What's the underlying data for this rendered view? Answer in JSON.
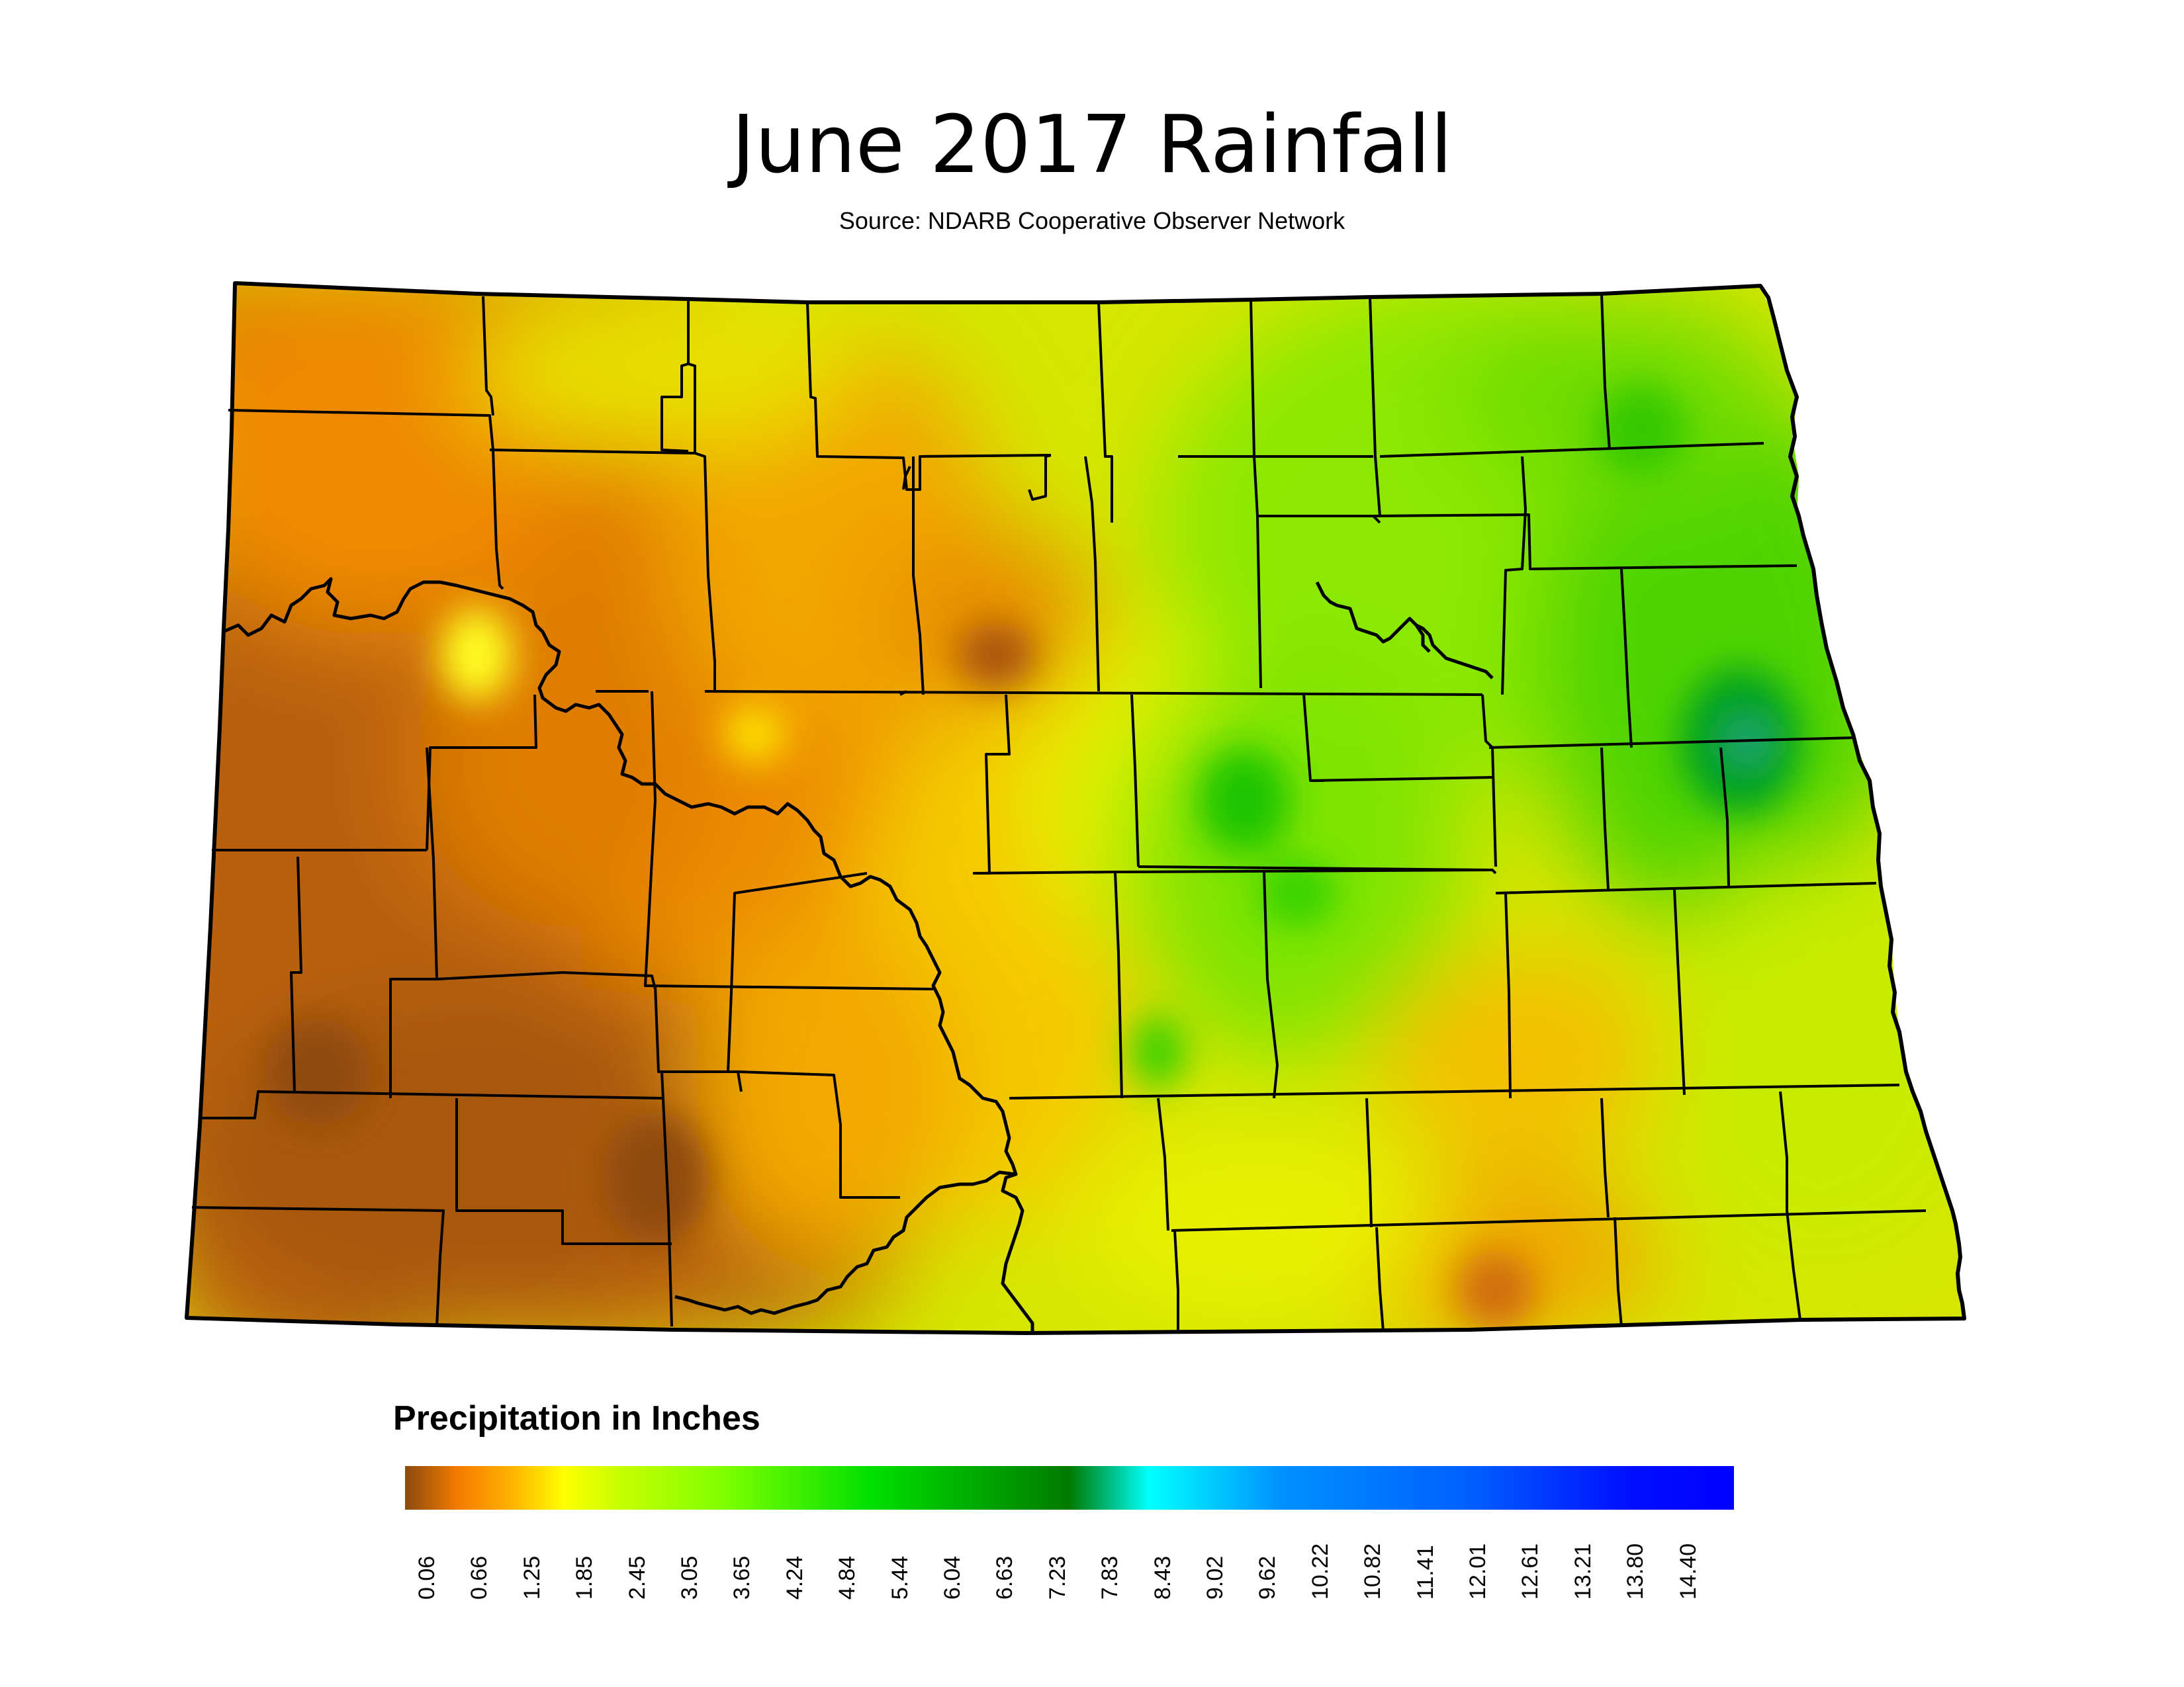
{
  "title": "June 2017 Rainfall",
  "subtitle": "Source: NDARB Cooperative Observer Network",
  "legend": {
    "title": "Precipitation in Inches",
    "ticks": [
      "0.06",
      "0.66",
      "1.25",
      "1.85",
      "2.45",
      "3.05",
      "3.65",
      "4.24",
      "4.84",
      "5.44",
      "6.04",
      "6.63",
      "7.23",
      "7.83",
      "8.43",
      "9.02",
      "9.62",
      "10.22",
      "10.82",
      "11.41",
      "12.01",
      "12.61",
      "13.21",
      "13.80",
      "14.40"
    ],
    "range": [
      0.06,
      15.0
    ],
    "colors": [
      "#8b4a0e",
      "#f47c00",
      "#ffb200",
      "#ffff00",
      "#c8ff00",
      "#7fff00",
      "#00e000",
      "#007a00",
      "#00ffff",
      "#0090ff",
      "#0060ff",
      "#0010ff",
      "#0000ff"
    ]
  },
  "map": {
    "region": "North Dakota",
    "boundaries": "county",
    "pattern": "Drier (brown/orange) in the west and southwest; wetter (yellow-green to green) in the east, with the wettest spot in the northeast."
  }
}
